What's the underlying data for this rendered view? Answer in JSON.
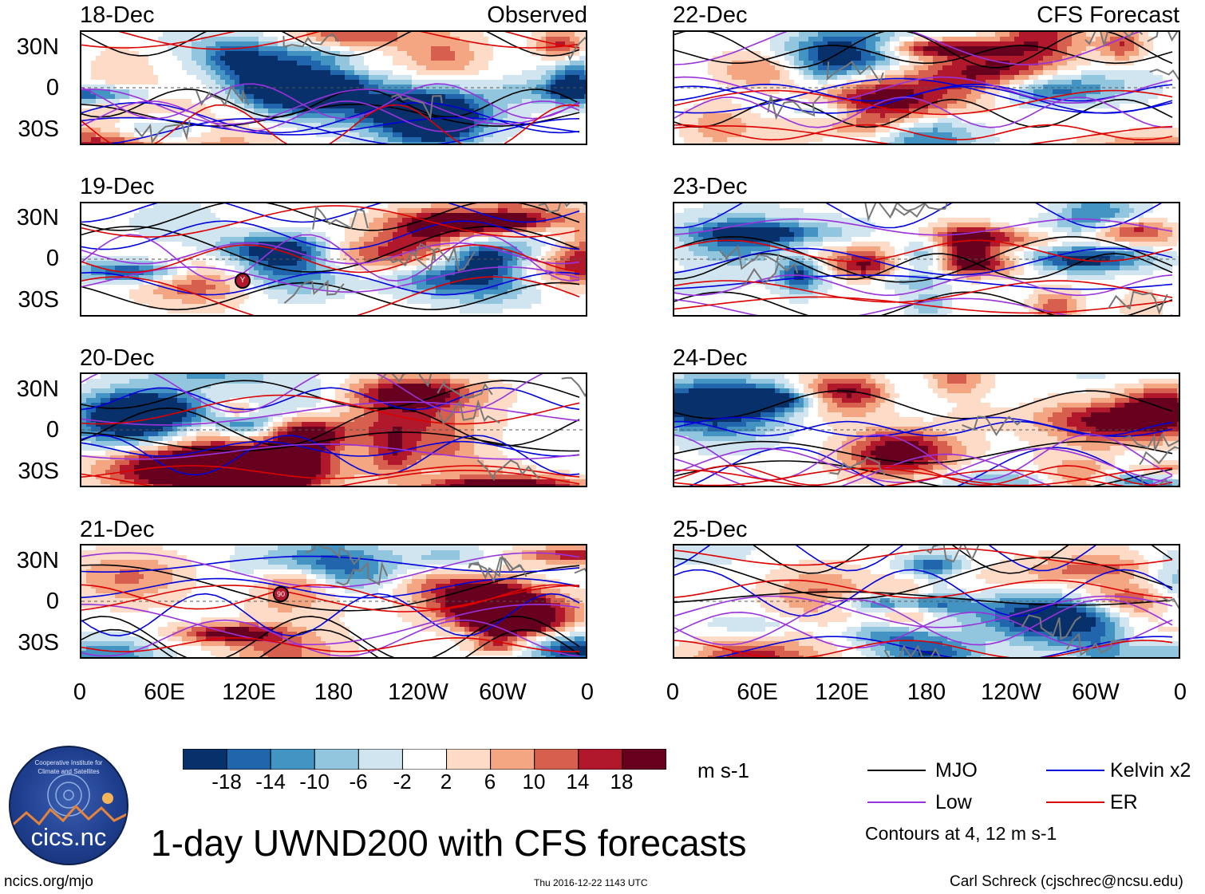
{
  "chart_data": {
    "type": "heatmap",
    "title": "1-day UWND200 with CFS forecasts",
    "variable": "UWND200",
    "units": "m s-1",
    "observed_label": "Observed",
    "forecast_label": "CFS Forecast",
    "panels_observed": [
      "18-Dec",
      "19-Dec",
      "20-Dec",
      "21-Dec"
    ],
    "panels_forecast": [
      "22-Dec",
      "23-Dec",
      "24-Dec",
      "25-Dec"
    ],
    "lat_ticks": [
      "30N",
      "0",
      "30S"
    ],
    "lat_range": [
      -40,
      40
    ],
    "lon_ticks": [
      "0",
      "60E",
      "120E",
      "180",
      "120W",
      "60W",
      "0"
    ],
    "lon_range": [
      0,
      360
    ],
    "colorbar": {
      "levels": [
        "-18",
        "-14",
        "-10",
        "-6",
        "-2",
        "2",
        "6",
        "10",
        "14",
        "18"
      ],
      "colors": [
        "#08306b",
        "#2166ac",
        "#4393c3",
        "#92c5de",
        "#d1e5f0",
        "#ffffff",
        "#fddbc7",
        "#f4a582",
        "#d6604d",
        "#b2182b",
        "#67001f"
      ]
    },
    "contour_legend": [
      {
        "name": "MJO",
        "color": "#000000"
      },
      {
        "name": "Kelvin x2",
        "color": "#0000dd"
      },
      {
        "name": "Low",
        "color": "#9932dd"
      },
      {
        "name": "ER",
        "color": "#dd0000"
      }
    ],
    "contour_note": "Contours at 4, 12 m s-1",
    "storm_markers": [
      {
        "panel": "19-Dec",
        "label": "Y"
      },
      {
        "panel": "21-Dec",
        "label": "90"
      }
    ]
  },
  "footer": {
    "website": "ncics.org/mjo",
    "timestamp": "Thu 2016-12-22 1143 UTC",
    "author": "Carl Schreck (cjschrec@ncsu.edu)"
  },
  "logo": {
    "text": "cics.nc",
    "arc_text": "Cooperative Institute for Climate and Satellites"
  }
}
